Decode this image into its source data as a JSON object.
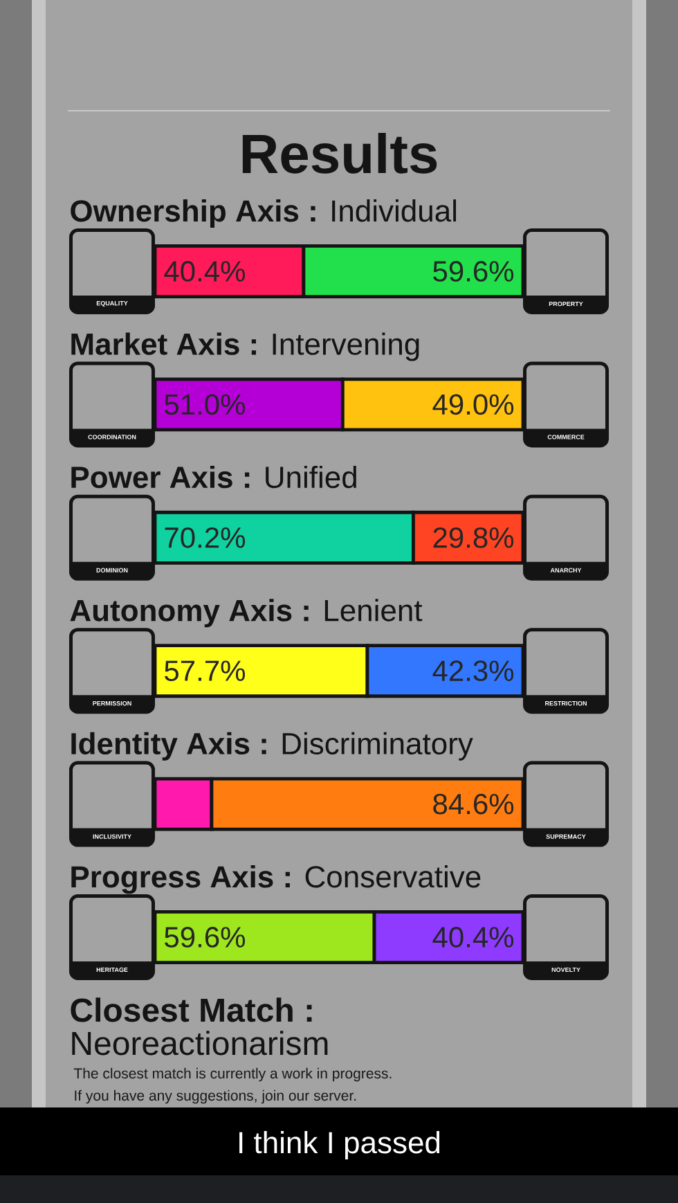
{
  "chart_data": {
    "type": "bar",
    "orientation": "horizontal",
    "stacked": true,
    "title": "Results",
    "categories": [
      "**Ownership Axis :** Individual",
      "**Market Axis :** Intervening",
      "**Power Axis :** Unified",
      "**Autonomy Axis :** Lenient",
      "**Identity Axis :** Discriminatory",
      "**Progress Axis :** Conservative"
    ],
    "series": [
      {
        "values": [
          40.4,
          51.0,
          70.2,
          57.7,
          15.4,
          59.6
        ],
        "colors": [
          "#ff1a5a",
          "#b400d6",
          "#10d1a0",
          "#ffff1a",
          "#ff1aad",
          "#9ee61e"
        ],
        "value_labels": [
          "40.4%",
          "51.0%",
          "70.2%",
          "57.7%",
          null,
          "59.6%"
        ]
      },
      {
        "values": [
          59.6,
          49.0,
          29.8,
          42.3,
          84.6,
          40.4
        ],
        "colors": [
          "#22e04c",
          "#ffc20e",
          "#ff4424",
          "#3377ff",
          "#ff7d10",
          "#8e3bff"
        ],
        "value_labels": [
          "59.6%",
          "49.0%",
          "29.8%",
          "42.3%",
          "84.6%",
          "40.4%"
        ]
      }
    ],
    "xlim": [
      0,
      100
    ],
    "tick_labels": false,
    "annotations": [
      "EQUALITY",
      "PROPERTY",
      "COORDINATION",
      "COMMERCE",
      "DOMINION",
      "ANARCHY",
      "PERMISSION",
      "RESTRICTION",
      "INCLUSIVITY",
      "SUPREMACY",
      "HERITAGE",
      "NOVELTY",
      "Closest Match :",
      "Neoreactionarism",
      "The closest match is currently a work in progress.",
      "If you have any suggestions, join our server.",
      "I think I passed"
    ]
  }
}
